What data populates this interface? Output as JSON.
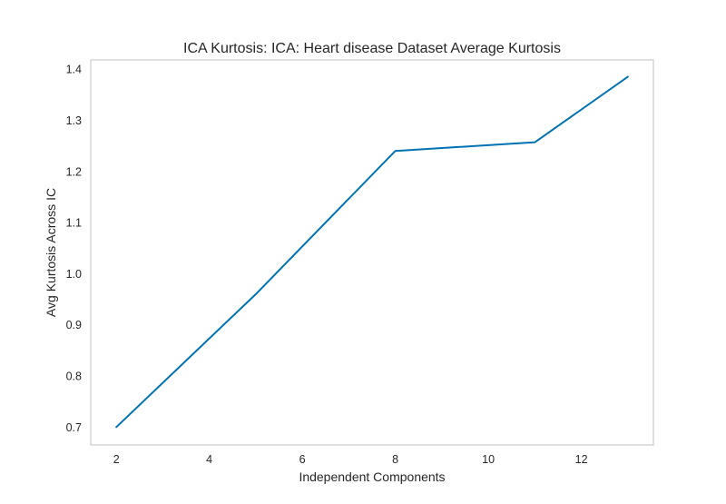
{
  "chart_data": {
    "type": "line",
    "title": "ICA Kurtosis: ICA: Heart disease Dataset Average Kurtosis",
    "xlabel": "Independent Components",
    "ylabel": "Avg Kurtosis Across IC",
    "x_ticks": [
      2,
      4,
      6,
      8,
      10,
      12
    ],
    "y_ticks": [
      0.7,
      0.8,
      0.9,
      1.0,
      1.1,
      1.2,
      1.3,
      1.4
    ],
    "x_tick_labels": [
      "2",
      "4",
      "6",
      "8",
      "10",
      "12"
    ],
    "y_tick_labels": [
      "0.7",
      "0.8",
      "0.9",
      "1.0",
      "1.1",
      "1.2",
      "1.3",
      "1.4"
    ],
    "xlim": [
      1.45,
      13.55
    ],
    "ylim": [
      0.665,
      1.418
    ],
    "grid": false,
    "series": [
      {
        "color": "#0072b2",
        "x": [
          2,
          5,
          8,
          11,
          13
        ],
        "y": [
          0.7,
          0.96,
          1.24,
          1.257,
          1.385
        ]
      }
    ]
  }
}
